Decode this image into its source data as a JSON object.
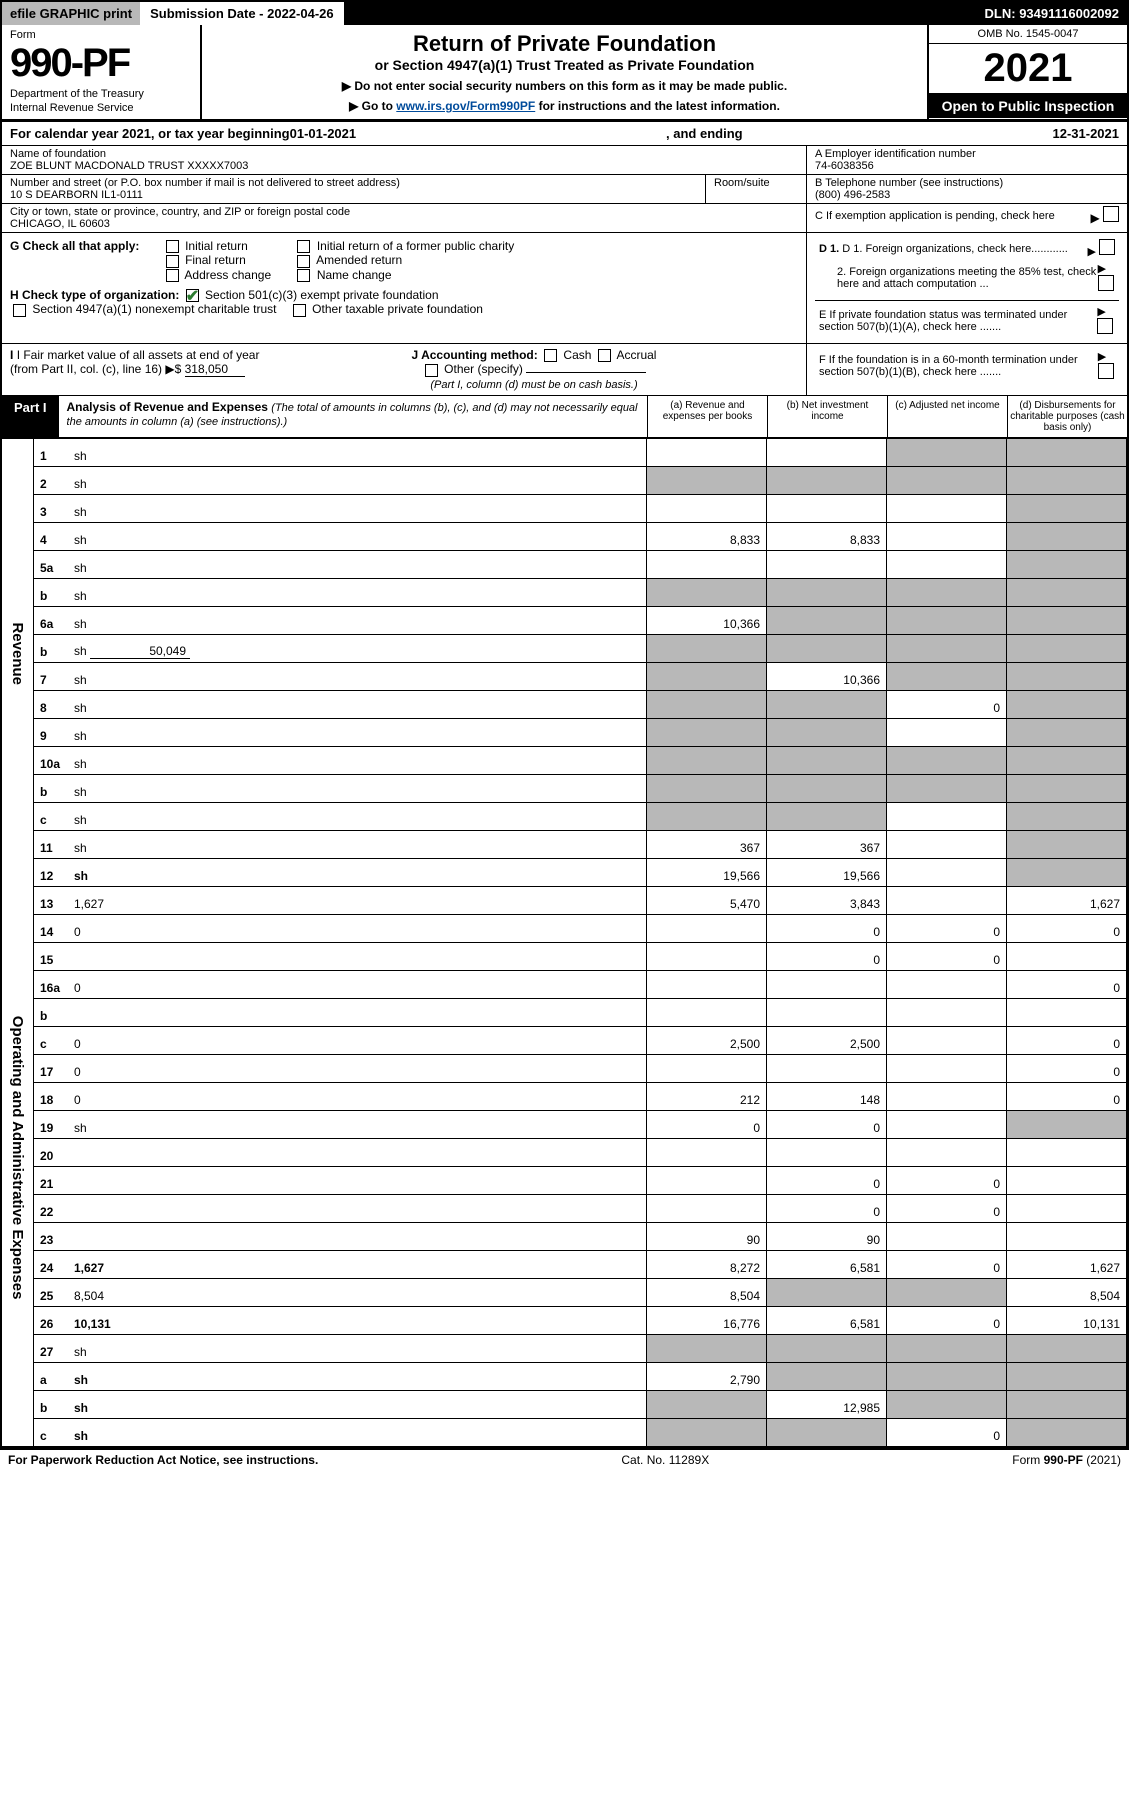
{
  "topbar": {
    "efile": "efile GRAPHIC print",
    "subdate_label": "Submission Date - ",
    "subdate": "2022-04-26",
    "dln_label": "DLN: ",
    "dln": "93491116002092"
  },
  "header": {
    "form_label": "Form",
    "form_num": "990-PF",
    "dept1": "Department of the Treasury",
    "dept2": "Internal Revenue Service",
    "title": "Return of Private Foundation",
    "subtitle": "or Section 4947(a)(1) Trust Treated as Private Foundation",
    "instr1": "▶ Do not enter social security numbers on this form as it may be made public.",
    "instr2_pre": "▶ Go to ",
    "instr2_link": "www.irs.gov/Form990PF",
    "instr2_post": " for instructions and the latest information.",
    "omb": "OMB No. 1545-0047",
    "year": "2021",
    "open": "Open to Public Inspection"
  },
  "calyear": {
    "pre": "For calendar year 2021, or tax year beginning ",
    "begin": "01-01-2021",
    "mid": " , and ending ",
    "end": "12-31-2021"
  },
  "nameblock": {
    "name_label": "Name of foundation",
    "name": "ZOE BLUNT MACDONALD TRUST XXXXX7003",
    "addr_label": "Number and street (or P.O. box number if mail is not delivered to street address)",
    "addr": "10 S DEARBORN IL1-0111",
    "room_label": "Room/suite",
    "city_label": "City or town, state or province, country, and ZIP or foreign postal code",
    "city": "CHICAGO, IL  60603"
  },
  "right_info": {
    "a_label": "A Employer identification number",
    "a_val": "74-6038356",
    "b_label": "B Telephone number (see instructions)",
    "b_val": "(800) 496-2583",
    "c_label": "C If exemption application is pending, check here",
    "d1": "D 1. Foreign organizations, check here............",
    "d2": "2. Foreign organizations meeting the 85% test, check here and attach computation ...",
    "e": "E  If private foundation status was terminated under section 507(b)(1)(A), check here .......",
    "f": "F  If the foundation is in a 60-month termination under section 507(b)(1)(B), check here .......",
    "g_label": "G Check all that apply:",
    "g_opts": [
      "Initial return",
      "Final return",
      "Address change",
      "Initial return of a former public charity",
      "Amended return",
      "Name change"
    ],
    "h_label": "H Check type of organization:",
    "h_opt1": "Section 501(c)(3) exempt private foundation",
    "h_opt2": "Section 4947(a)(1) nonexempt charitable trust",
    "h_opt3": "Other taxable private foundation",
    "i_label": "I Fair market value of all assets at end of year (from Part II, col. (c), line 16) ▶$ ",
    "i_val": "318,050",
    "j_label": "J Accounting method:",
    "j_cash": "Cash",
    "j_accrual": "Accrual",
    "j_other": "Other (specify)",
    "j_note": "(Part I, column (d) must be on cash basis.)"
  },
  "part1": {
    "label": "Part I",
    "title": "Analysis of Revenue and Expenses",
    "title_note": "(The total of amounts in columns (b), (c), and (d) may not necessarily equal the amounts in column (a) (see instructions).)",
    "col_a": "(a)   Revenue and expenses per books",
    "col_b": "(b)   Net investment income",
    "col_c": "(c)   Adjusted net income",
    "col_d": "(d)   Disbursements for charitable purposes (cash basis only)"
  },
  "side_labels": {
    "revenue": "Revenue",
    "expenses": "Operating and Administrative Expenses"
  },
  "rows": [
    {
      "n": "1",
      "d": "sh",
      "a": "",
      "b": "",
      "c": "sh"
    },
    {
      "n": "2",
      "d": "sh",
      "a": "sh",
      "b": "sh",
      "c": "sh",
      "bold": false
    },
    {
      "n": "3",
      "d": "sh",
      "a": "",
      "b": "",
      "c": ""
    },
    {
      "n": "4",
      "d": "sh",
      "a": "8,833",
      "b": "8,833",
      "c": ""
    },
    {
      "n": "5a",
      "d": "sh",
      "a": "",
      "b": "",
      "c": ""
    },
    {
      "n": "b",
      "d": "sh",
      "a": "sh",
      "b": "sh",
      "c": "sh"
    },
    {
      "n": "6a",
      "d": "sh",
      "a": "10,366",
      "b": "sh",
      "c": "sh"
    },
    {
      "n": "b",
      "d": "sh",
      "sub": "50,049",
      "a": "sh",
      "b": "sh",
      "c": "sh"
    },
    {
      "n": "7",
      "d": "sh",
      "a": "sh",
      "b": "10,366",
      "c": "sh"
    },
    {
      "n": "8",
      "d": "sh",
      "a": "sh",
      "b": "sh",
      "c": "0"
    },
    {
      "n": "9",
      "d": "sh",
      "a": "sh",
      "b": "sh",
      "c": ""
    },
    {
      "n": "10a",
      "d": "sh",
      "a": "sh",
      "b": "sh",
      "c": "sh"
    },
    {
      "n": "b",
      "d": "sh",
      "a": "sh",
      "b": "sh",
      "c": "sh"
    },
    {
      "n": "c",
      "d": "sh",
      "a": "sh",
      "b": "sh",
      "c": ""
    },
    {
      "n": "11",
      "d": "sh",
      "a": "367",
      "b": "367",
      "c": ""
    },
    {
      "n": "12",
      "d": "sh",
      "a": "19,566",
      "b": "19,566",
      "c": "",
      "bold": true
    },
    {
      "n": "13",
      "d": "1,627",
      "a": "5,470",
      "b": "3,843",
      "c": ""
    },
    {
      "n": "14",
      "d": "0",
      "a": "",
      "b": "0",
      "c": "0"
    },
    {
      "n": "15",
      "d": "",
      "a": "",
      "b": "0",
      "c": "0"
    },
    {
      "n": "16a",
      "d": "0",
      "a": "",
      "b": "",
      "c": ""
    },
    {
      "n": "b",
      "d": "",
      "a": "",
      "b": "",
      "c": ""
    },
    {
      "n": "c",
      "d": "0",
      "a": "2,500",
      "b": "2,500",
      "c": ""
    },
    {
      "n": "17",
      "d": "0",
      "a": "",
      "b": "",
      "c": ""
    },
    {
      "n": "18",
      "d": "0",
      "a": "212",
      "b": "148",
      "c": ""
    },
    {
      "n": "19",
      "d": "sh",
      "a": "0",
      "b": "0",
      "c": ""
    },
    {
      "n": "20",
      "d": "",
      "a": "",
      "b": "",
      "c": ""
    },
    {
      "n": "21",
      "d": "",
      "a": "",
      "b": "0",
      "c": "0"
    },
    {
      "n": "22",
      "d": "",
      "a": "",
      "b": "0",
      "c": "0"
    },
    {
      "n": "23",
      "d": "",
      "a": "90",
      "b": "90",
      "c": ""
    },
    {
      "n": "24",
      "d": "1,627",
      "a": "8,272",
      "b": "6,581",
      "c": "0",
      "bold": true
    },
    {
      "n": "25",
      "d": "8,504",
      "a": "8,504",
      "b": "sh",
      "c": "sh"
    },
    {
      "n": "26",
      "d": "10,131",
      "a": "16,776",
      "b": "6,581",
      "c": "0",
      "bold": true
    },
    {
      "n": "27",
      "d": "sh",
      "a": "sh",
      "b": "sh",
      "c": "sh"
    },
    {
      "n": "a",
      "d": "sh",
      "a": "2,790",
      "b": "sh",
      "c": "sh",
      "bold": true
    },
    {
      "n": "b",
      "d": "sh",
      "a": "sh",
      "b": "12,985",
      "c": "sh",
      "bold": true
    },
    {
      "n": "c",
      "d": "sh",
      "a": "sh",
      "b": "sh",
      "c": "0",
      "bold": true
    }
  ],
  "footer": {
    "left": "For Paperwork Reduction Act Notice, see instructions.",
    "mid": "Cat. No. 11289X",
    "right": "Form 990-PF (2021)"
  },
  "colors": {
    "shade": "#b8b8b8",
    "link": "#004b9b",
    "check": "#2e7d32"
  }
}
